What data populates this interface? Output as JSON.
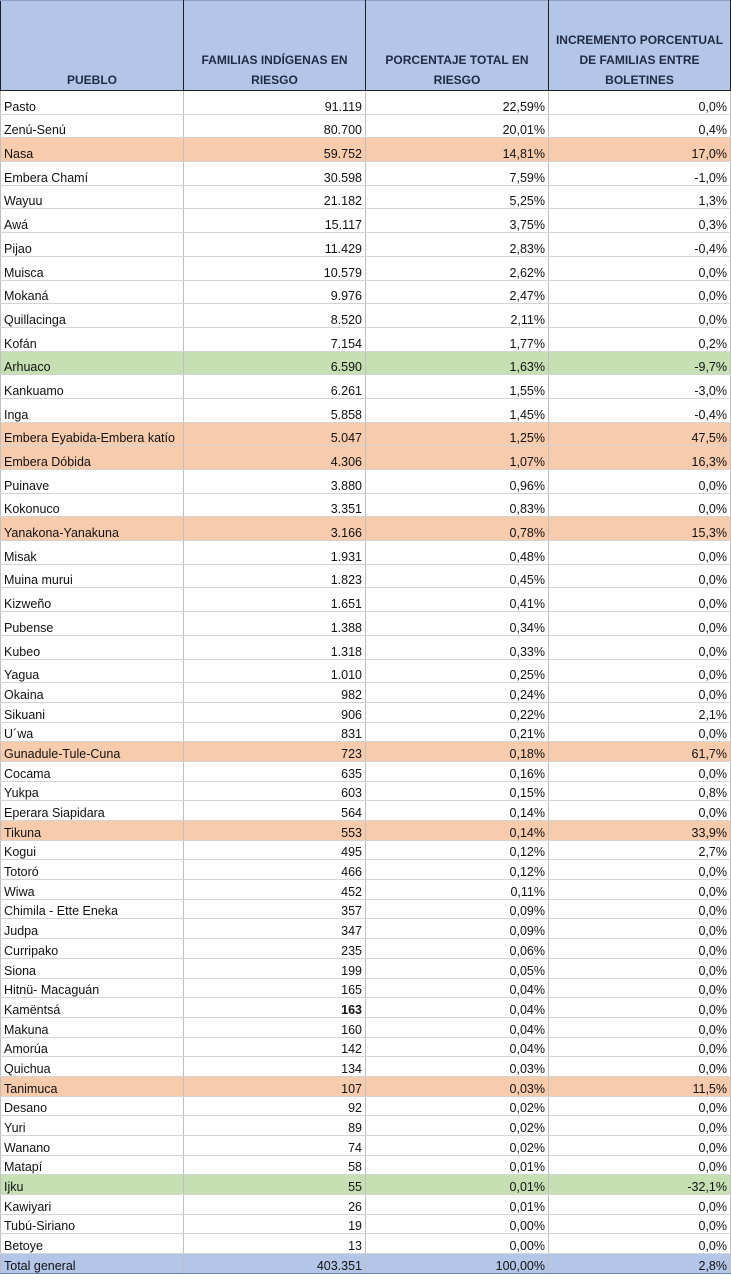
{
  "headers": {
    "pueblo": "PUEBLO",
    "familias": "FAMILIAS INDÍGENAS EN RIESGO",
    "porcentaje": "PORCENTAJE TOTAL EN RIESGO",
    "incremento": "INCREMENTO PORCENTUAL DE FAMILIAS ENTRE BOLETINES"
  },
  "highlight_colors": {
    "orange": "#f8cbad",
    "green": "#c6e0b4",
    "header": "#b4c6e7"
  },
  "rows": [
    {
      "pueblo": "Pasto",
      "familias": "91.119",
      "porcentaje": "22,59%",
      "incremento": "0,0%",
      "hl": ""
    },
    {
      "pueblo": "Zenú-Senú",
      "familias": "80.700",
      "porcentaje": "20,01%",
      "incremento": "0,4%",
      "hl": ""
    },
    {
      "pueblo": "Nasa",
      "familias": "59.752",
      "porcentaje": "14,81%",
      "incremento": "17,0%",
      "hl": "orange"
    },
    {
      "pueblo": "Embera Chamí",
      "familias": "30.598",
      "porcentaje": "7,59%",
      "incremento": "-1,0%",
      "hl": ""
    },
    {
      "pueblo": "Wayuu",
      "familias": "21.182",
      "porcentaje": "5,25%",
      "incremento": "1,3%",
      "hl": ""
    },
    {
      "pueblo": "Awá",
      "familias": "15.117",
      "porcentaje": "3,75%",
      "incremento": "0,3%",
      "hl": ""
    },
    {
      "pueblo": "Pijao",
      "familias": "11.429",
      "porcentaje": "2,83%",
      "incremento": "-0,4%",
      "hl": ""
    },
    {
      "pueblo": "Muisca",
      "familias": "10.579",
      "porcentaje": "2,62%",
      "incremento": "0,0%",
      "hl": ""
    },
    {
      "pueblo": "Mokaná",
      "familias": "9.976",
      "porcentaje": "2,47%",
      "incremento": "0,0%",
      "hl": ""
    },
    {
      "pueblo": "Quillacinga",
      "familias": "8.520",
      "porcentaje": "2,11%",
      "incremento": "0,0%",
      "hl": ""
    },
    {
      "pueblo": "Kofán",
      "familias": "7.154",
      "porcentaje": "1,77%",
      "incremento": "0,2%",
      "hl": ""
    },
    {
      "pueblo": "Arhuaco",
      "familias": "6.590",
      "porcentaje": "1,63%",
      "incremento": "-9,7%",
      "hl": "green"
    },
    {
      "pueblo": "Kankuamo",
      "familias": "6.261",
      "porcentaje": "1,55%",
      "incremento": "-3,0%",
      "hl": ""
    },
    {
      "pueblo": "Inga",
      "familias": "5.858",
      "porcentaje": "1,45%",
      "incremento": "-0,4%",
      "hl": ""
    },
    {
      "pueblo": "Embera Eyabida-Embera katío",
      "familias": "5.047",
      "porcentaje": "1,25%",
      "incremento": "47,5%",
      "hl": "orange"
    },
    {
      "pueblo": "Embera Dóbida",
      "familias": "4.306",
      "porcentaje": "1,07%",
      "incremento": "16,3%",
      "hl": "orange"
    },
    {
      "pueblo": "Puinave",
      "familias": "3.880",
      "porcentaje": "0,96%",
      "incremento": "0,0%",
      "hl": ""
    },
    {
      "pueblo": "Kokonuco",
      "familias": "3.351",
      "porcentaje": "0,83%",
      "incremento": "0,0%",
      "hl": ""
    },
    {
      "pueblo": "Yanakona-Yanakuna",
      "familias": "3.166",
      "porcentaje": "0,78%",
      "incremento": "15,3%",
      "hl": "orange"
    },
    {
      "pueblo": "Misak",
      "familias": "1.931",
      "porcentaje": "0,48%",
      "incremento": "0,0%",
      "hl": ""
    },
    {
      "pueblo": "Muina murui",
      "familias": "1.823",
      "porcentaje": "0,45%",
      "incremento": "0,0%",
      "hl": ""
    },
    {
      "pueblo": "Kizweño",
      "familias": "1.651",
      "porcentaje": "0,41%",
      "incremento": "0,0%",
      "hl": ""
    },
    {
      "pueblo": "Pubense",
      "familias": "1.388",
      "porcentaje": "0,34%",
      "incremento": "0,0%",
      "hl": ""
    },
    {
      "pueblo": "Kubeo",
      "familias": "1.318",
      "porcentaje": "0,33%",
      "incremento": "0,0%",
      "hl": ""
    },
    {
      "pueblo": "Yagua",
      "familias": "1.010",
      "porcentaje": "0,25%",
      "incremento": "0,0%",
      "hl": ""
    },
    {
      "pueblo": "Okaina",
      "familias": "982",
      "porcentaje": "0,24%",
      "incremento": "0,0%",
      "hl": ""
    },
    {
      "pueblo": "Sikuani",
      "familias": "906",
      "porcentaje": "0,22%",
      "incremento": "2,1%",
      "hl": ""
    },
    {
      "pueblo": "U´wa",
      "familias": "831",
      "porcentaje": "0,21%",
      "incremento": "0,0%",
      "hl": ""
    },
    {
      "pueblo": "Gunadule-Tule-Cuna",
      "familias": "723",
      "porcentaje": "0,18%",
      "incremento": "61,7%",
      "hl": "orange"
    },
    {
      "pueblo": "Cocama",
      "familias": "635",
      "porcentaje": "0,16%",
      "incremento": "0,0%",
      "hl": ""
    },
    {
      "pueblo": "Yukpa",
      "familias": "603",
      "porcentaje": "0,15%",
      "incremento": "0,8%",
      "hl": ""
    },
    {
      "pueblo": "Eperara Siapidara",
      "familias": "564",
      "porcentaje": "0,14%",
      "incremento": "0,0%",
      "hl": ""
    },
    {
      "pueblo": "Tikuna",
      "familias": "553",
      "porcentaje": "0,14%",
      "incremento": "33,9%",
      "hl": "orange"
    },
    {
      "pueblo": "Kogui",
      "familias": "495",
      "porcentaje": "0,12%",
      "incremento": "2,7%",
      "hl": ""
    },
    {
      "pueblo": "Totoró",
      "familias": "466",
      "porcentaje": "0,12%",
      "incremento": "0,0%",
      "hl": ""
    },
    {
      "pueblo": "Wiwa",
      "familias": "452",
      "porcentaje": "0,11%",
      "incremento": "0,0%",
      "hl": ""
    },
    {
      "pueblo": "Chimila - Ette Eneka",
      "familias": "357",
      "porcentaje": "0,09%",
      "incremento": "0,0%",
      "hl": ""
    },
    {
      "pueblo": "Judpa",
      "familias": "347",
      "porcentaje": "0,09%",
      "incremento": "0,0%",
      "hl": ""
    },
    {
      "pueblo": "Curripako",
      "familias": "235",
      "porcentaje": "0,06%",
      "incremento": "0,0%",
      "hl": ""
    },
    {
      "pueblo": "Siona",
      "familias": "199",
      "porcentaje": "0,05%",
      "incremento": "0,0%",
      "hl": ""
    },
    {
      "pueblo": "Hitnü- Macaguán",
      "familias": "165",
      "porcentaje": "0,04%",
      "incremento": "0,0%",
      "hl": ""
    },
    {
      "pueblo": "Kamëntsá",
      "familias": "163",
      "porcentaje": "0,04%",
      "incremento": "0,0%",
      "hl": "",
      "bold_familias": true
    },
    {
      "pueblo": "Makuna",
      "familias": "160",
      "porcentaje": "0,04%",
      "incremento": "0,0%",
      "hl": ""
    },
    {
      "pueblo": "Amorúa",
      "familias": "142",
      "porcentaje": "0,04%",
      "incremento": "0,0%",
      "hl": ""
    },
    {
      "pueblo": "Quichua",
      "familias": "134",
      "porcentaje": "0,03%",
      "incremento": "0,0%",
      "hl": ""
    },
    {
      "pueblo": "Tanimuca",
      "familias": "107",
      "porcentaje": "0,03%",
      "incremento": "11,5%",
      "hl": "orange"
    },
    {
      "pueblo": "Desano",
      "familias": "92",
      "porcentaje": "0,02%",
      "incremento": "0,0%",
      "hl": ""
    },
    {
      "pueblo": "Yuri",
      "familias": "89",
      "porcentaje": "0,02%",
      "incremento": "0,0%",
      "hl": ""
    },
    {
      "pueblo": "Wanano",
      "familias": "74",
      "porcentaje": "0,02%",
      "incremento": "0,0%",
      "hl": ""
    },
    {
      "pueblo": "Matapí",
      "familias": "58",
      "porcentaje": "0,01%",
      "incremento": "0,0%",
      "hl": ""
    },
    {
      "pueblo": "Ijku",
      "familias": "55",
      "porcentaje": "0,01%",
      "incremento": "-32,1%",
      "hl": "green"
    },
    {
      "pueblo": "Kawiyari",
      "familias": "26",
      "porcentaje": "0,01%",
      "incremento": "0,0%",
      "hl": ""
    },
    {
      "pueblo": "Tubú-Siriano",
      "familias": "19",
      "porcentaje": "0,00%",
      "incremento": "0,0%",
      "hl": ""
    },
    {
      "pueblo": "Betoye",
      "familias": "13",
      "porcentaje": "0,00%",
      "incremento": "0,0%",
      "hl": ""
    }
  ],
  "total": {
    "pueblo": "Total general",
    "familias": "403.351",
    "porcentaje": "100,00%",
    "incremento": "2,8%"
  }
}
